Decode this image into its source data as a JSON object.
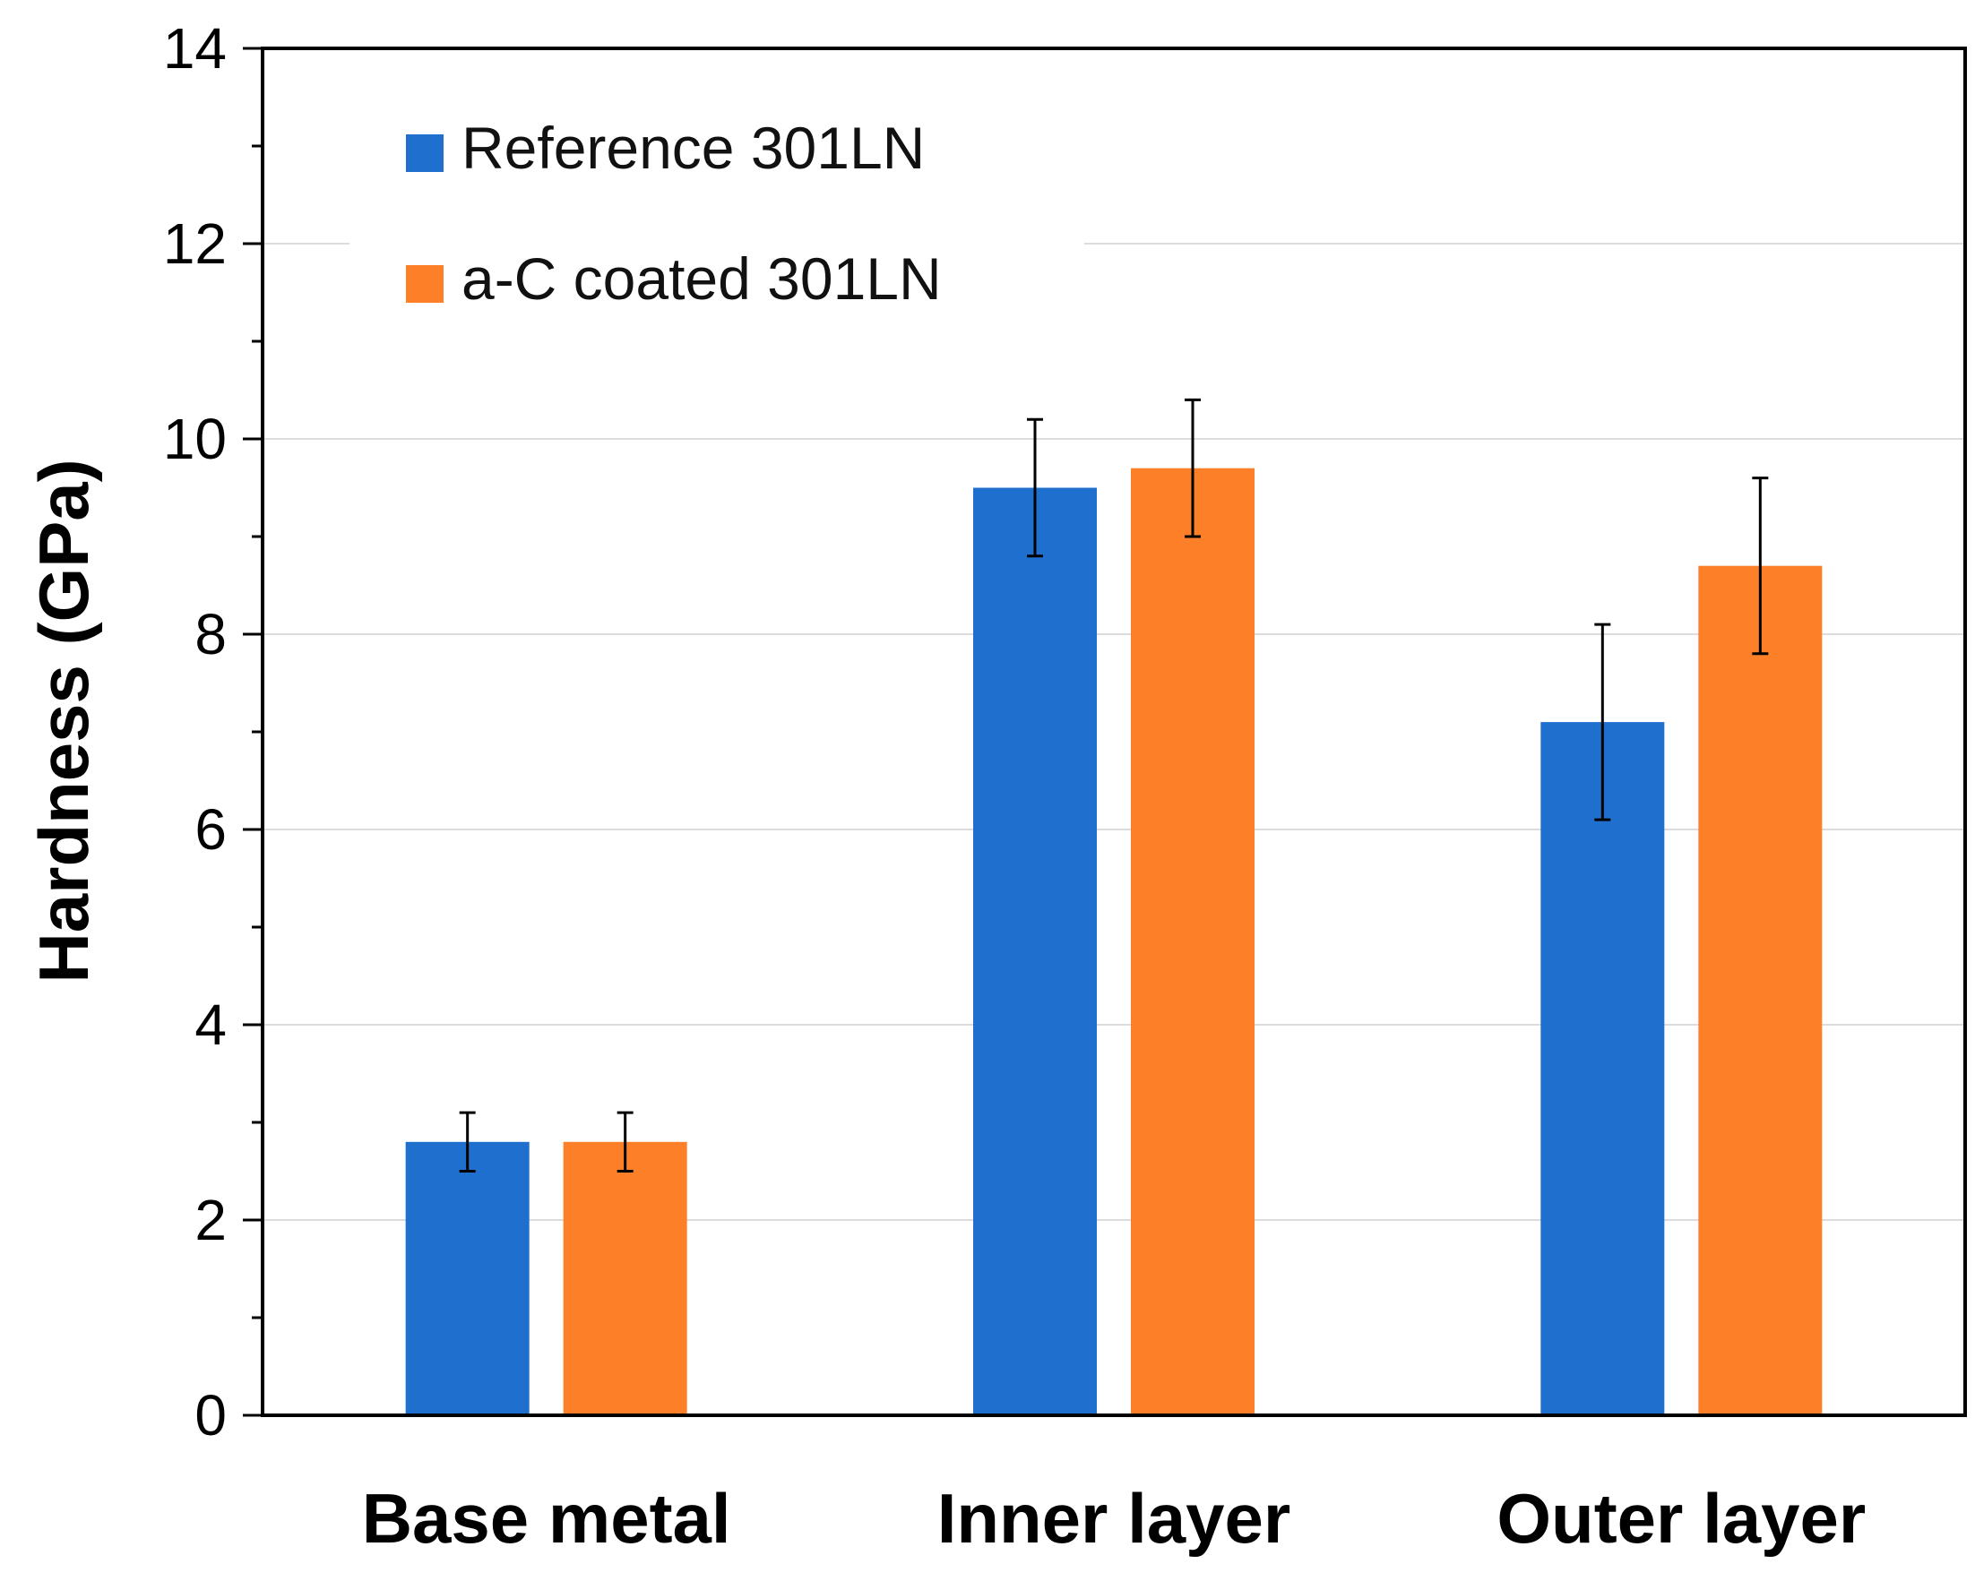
{
  "chart_data": {
    "type": "bar",
    "title": "",
    "xlabel": "",
    "ylabel": "Hardness (GPa)",
    "ylim": [
      0,
      14
    ],
    "yticks": [
      0,
      2,
      4,
      6,
      8,
      10,
      12,
      14
    ],
    "ytick_labels": [
      "0",
      "2",
      "4",
      "6",
      "8",
      "10",
      "12",
      "14"
    ],
    "minor_tick_step": 1,
    "grid": true,
    "legend_position": "top-left",
    "categories": [
      "Base metal",
      "Inner layer",
      "Outer layer"
    ],
    "series": [
      {
        "name": "Reference 301LN",
        "color": "#1f6fcf",
        "values": [
          2.8,
          9.5,
          7.1
        ],
        "errors": [
          0.3,
          0.7,
          1.0
        ]
      },
      {
        "name": "a-C coated 301LN",
        "color": "#fd7f28",
        "values": [
          2.8,
          9.7,
          8.7
        ],
        "errors": [
          0.3,
          0.7,
          0.9
        ]
      }
    ]
  }
}
